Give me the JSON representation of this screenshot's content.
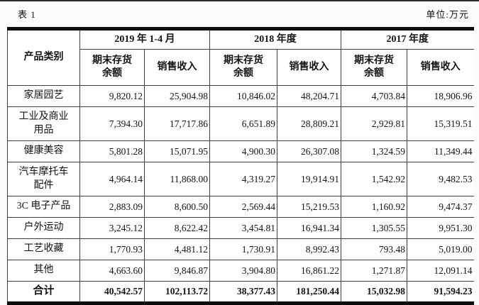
{
  "page": {
    "table_label": "表 1",
    "unit_label": "单位:万元"
  },
  "table": {
    "product_col_header": "产品类别",
    "period_groups": [
      "2019 年 1-4 月",
      "2018 年度",
      "2017 年度"
    ],
    "sub_headers": [
      "期末存货\n余额",
      "销售收入"
    ],
    "rows": [
      {
        "label": "家居园艺",
        "values": [
          "9,820.12",
          "25,904.98",
          "10,846.02",
          "48,204.71",
          "4,703.84",
          "18,906.96"
        ]
      },
      {
        "label": "工业及商业\n用品",
        "values": [
          "7,394.30",
          "17,717.86",
          "6,651.89",
          "28,809.21",
          "2,929.81",
          "15,319.51"
        ]
      },
      {
        "label": "健康美容",
        "values": [
          "5,801.28",
          "15,071.95",
          "4,900.30",
          "26,307.08",
          "1,324.59",
          "11,349.44"
        ]
      },
      {
        "label": "汽车摩托车\n配件",
        "values": [
          "4,964.14",
          "11,868.00",
          "4,319.27",
          "19,914.91",
          "1,542.92",
          "9,482.53"
        ]
      },
      {
        "label": "3C 电子产品",
        "values": [
          "2,883.09",
          "8,600.50",
          "2,569.44",
          "15,219.53",
          "1,160.92",
          "9,474.37"
        ]
      },
      {
        "label": "户外运动",
        "values": [
          "3,245.12",
          "8,622.42",
          "3,454.81",
          "16,941.34",
          "1,305.55",
          "9,951.30"
        ]
      },
      {
        "label": "工艺收藏",
        "values": [
          "1,770.93",
          "4,481.12",
          "1,730.91",
          "8,992.43",
          "793.48",
          "5,019.00"
        ]
      },
      {
        "label": "其他",
        "values": [
          "4,663.60",
          "9,846.87",
          "3,904.80",
          "16,861.22",
          "1,271.87",
          "12,091.14"
        ]
      }
    ],
    "total_row": {
      "label": "合计",
      "values": [
        "40,542.57",
        "102,113.72",
        "38,377.43",
        "181,250.44",
        "15,032.98",
        "91,594.23"
      ]
    }
  }
}
